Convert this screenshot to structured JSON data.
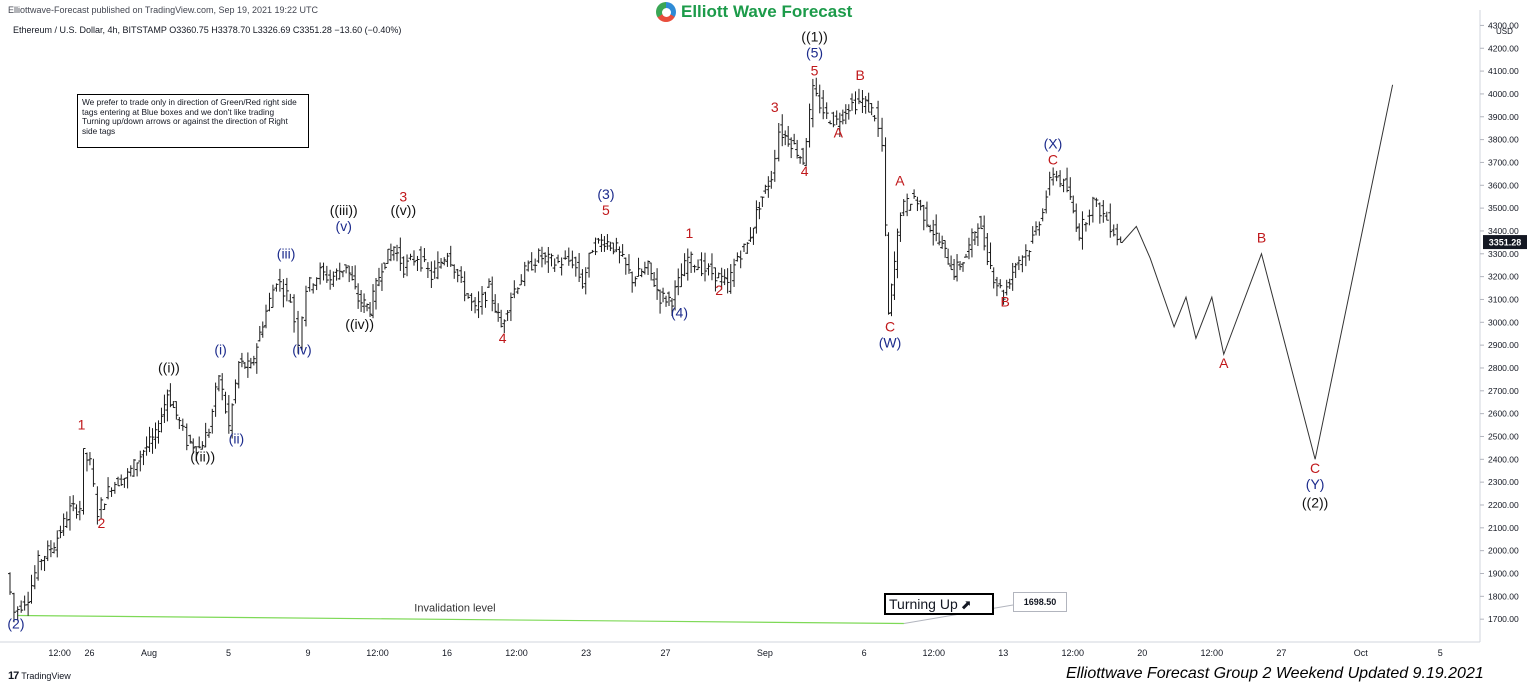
{
  "header": {
    "published": "Elliottwave-Forecast published on TradingView.com, Sep 19, 2021 19:22 UTC",
    "symbol_line": "Ethereum / U.S. Dollar, 4h, BITSTAMP  O3360.75  H3378.70  L3326.69  C3351.28  −13.60 (−0.40%)"
  },
  "brand": {
    "name": "Elliott Wave Forecast",
    "colors": [
      "#2e8bd6",
      "#e84d3c",
      "#3aa655"
    ]
  },
  "note_text": "We prefer to trade only in direction of Green/Red right side tags entering at Blue boxes and we don't like trading Turning up/down arrows or against the direction of Right side tags",
  "turning_label": "Turning Up",
  "turning_icon": "trend-up-arrow-icon",
  "invalidation": {
    "label": "Invalidation level",
    "value": "1698.50"
  },
  "footer": {
    "tradingview": "TradingView",
    "updated": "Elliottwave Forecast Group 2 Weekend Updated 9.19.2021"
  },
  "chart_data": {
    "type": "line",
    "title": "",
    "xlabel": "",
    "ylabel": "USD",
    "ylim": [
      1600,
      4350
    ],
    "grid": false,
    "y_ticks": [
      1700,
      1800,
      1900,
      2000,
      2100,
      2200,
      2300,
      2400,
      2500,
      2600,
      2700,
      2800,
      2900,
      3000,
      3100,
      3200,
      3300,
      3400,
      3500,
      3600,
      3700,
      3800,
      3900,
      4000,
      4100,
      4200,
      4300
    ],
    "y_tick_labels": [
      "1700.00",
      "1800.00",
      "1900.00",
      "2000.00",
      "2100.00",
      "2200.00",
      "2300.00",
      "2400.00",
      "2500.00",
      "2600.00",
      "2700.00",
      "2800.00",
      "2900.00",
      "3000.00",
      "3100.00",
      "3200.00",
      "3300.00",
      "3400.00",
      "3500.00",
      "3600.00",
      "3700.00",
      "3800.00",
      "3900.00",
      "4000.00",
      "4100.00",
      "4200.00",
      "4300.00"
    ],
    "y_top_label": "USD",
    "current_price": "3351.28",
    "x_tick_labels": [
      {
        "label": "12:00",
        "x": -4.5
      },
      {
        "label": "26",
        "x": -3
      },
      {
        "label": "Aug",
        "x": 0
      },
      {
        "label": "5",
        "x": 4
      },
      {
        "label": "9",
        "x": 8
      },
      {
        "label": "12:00",
        "x": 11.5
      },
      {
        "label": "16",
        "x": 15
      },
      {
        "label": "12:00",
        "x": 18.5
      },
      {
        "label": "23",
        "x": 22
      },
      {
        "label": "27",
        "x": 26
      },
      {
        "label": "Sep",
        "x": 31
      },
      {
        "label": "6",
        "x": 36
      },
      {
        "label": "12:00",
        "x": 39.5
      },
      {
        "label": "13",
        "x": 43
      },
      {
        "label": "12:00",
        "x": 46.5
      },
      {
        "label": "20",
        "x": 50
      },
      {
        "label": "12:00",
        "x": 53.5
      },
      {
        "label": "27",
        "x": 57
      },
      {
        "label": "Oct",
        "x": 61
      },
      {
        "label": "5",
        "x": 65
      }
    ],
    "x_unit": "days since Aug 1, 2021",
    "price_path": [
      [
        -7.1,
        1900
      ],
      [
        -6.7,
        1730
      ],
      [
        -6.0,
        1800
      ],
      [
        -5.5,
        1950
      ],
      [
        -4.7,
        2030
      ],
      [
        -3.9,
        2180
      ],
      [
        -3.4,
        2190
      ],
      [
        -3.2,
        2420
      ],
      [
        -2.9,
        2380
      ],
      [
        -2.5,
        2170
      ],
      [
        -1.8,
        2290
      ],
      [
        -1.0,
        2330
      ],
      [
        -0.2,
        2440
      ],
      [
        0.4,
        2500
      ],
      [
        1.0,
        2690
      ],
      [
        1.6,
        2560
      ],
      [
        2.0,
        2480
      ],
      [
        2.6,
        2450
      ],
      [
        3.1,
        2530
      ],
      [
        3.6,
        2770
      ],
      [
        4.1,
        2540
      ],
      [
        4.6,
        2820
      ],
      [
        5.2,
        2800
      ],
      [
        5.8,
        3000
      ],
      [
        6.5,
        3190
      ],
      [
        7.2,
        3100
      ],
      [
        7.6,
        2920
      ],
      [
        8.0,
        3150
      ],
      [
        8.7,
        3220
      ],
      [
        9.2,
        3190
      ],
      [
        10.0,
        3250
      ],
      [
        10.6,
        3100
      ],
      [
        11.2,
        3060
      ],
      [
        11.8,
        3250
      ],
      [
        12.4,
        3330
      ],
      [
        12.9,
        3240
      ],
      [
        13.6,
        3290
      ],
      [
        14.3,
        3200
      ],
      [
        15.1,
        3310
      ],
      [
        15.8,
        3170
      ],
      [
        16.5,
        3050
      ],
      [
        17.2,
        3150
      ],
      [
        17.8,
        2980
      ],
      [
        18.3,
        3120
      ],
      [
        19.0,
        3220
      ],
      [
        19.7,
        3290
      ],
      [
        20.5,
        3260
      ],
      [
        21.4,
        3270
      ],
      [
        21.9,
        3170
      ],
      [
        22.4,
        3330
      ],
      [
        23.0,
        3360
      ],
      [
        23.6,
        3320
      ],
      [
        24.4,
        3190
      ],
      [
        25.2,
        3240
      ],
      [
        25.8,
        3110
      ],
      [
        26.4,
        3100
      ],
      [
        27.2,
        3280
      ],
      [
        27.9,
        3240
      ],
      [
        28.6,
        3210
      ],
      [
        29.2,
        3160
      ],
      [
        29.7,
        3290
      ],
      [
        30.2,
        3340
      ],
      [
        30.8,
        3520
      ],
      [
        31.4,
        3640
      ],
      [
        31.8,
        3840
      ],
      [
        32.4,
        3790
      ],
      [
        33.0,
        3710
      ],
      [
        33.5,
        4010
      ],
      [
        34.2,
        3900
      ],
      [
        34.7,
        3880
      ],
      [
        35.3,
        3950
      ],
      [
        36.0,
        3970
      ],
      [
        36.6,
        3910
      ],
      [
        37.0,
        3770
      ],
      [
        37.3,
        3030
      ],
      [
        37.9,
        3490
      ],
      [
        38.6,
        3550
      ],
      [
        39.4,
        3420
      ],
      [
        40.0,
        3330
      ],
      [
        40.6,
        3220
      ],
      [
        41.2,
        3290
      ],
      [
        41.8,
        3440
      ],
      [
        42.6,
        3200
      ],
      [
        43.1,
        3120
      ],
      [
        43.7,
        3260
      ],
      [
        44.4,
        3330
      ],
      [
        44.9,
        3450
      ],
      [
        45.6,
        3660
      ],
      [
        46.3,
        3580
      ],
      [
        46.9,
        3390
      ],
      [
        47.6,
        3530
      ],
      [
        48.3,
        3450
      ],
      [
        49.0,
        3351
      ]
    ],
    "projection_path": [
      [
        49.0,
        3351
      ],
      [
        49.7,
        3420
      ],
      [
        50.4,
        3280
      ],
      [
        51.6,
        2980
      ],
      [
        52.2,
        3110
      ],
      [
        52.7,
        2930
      ],
      [
        53.5,
        3110
      ],
      [
        54.1,
        2860
      ],
      [
        56.0,
        3300
      ],
      [
        58.7,
        2400
      ],
      [
        62.6,
        4040
      ]
    ],
    "invalidation_value": 1698.5,
    "wave_labels": [
      {
        "text": "(2)",
        "x": -6.7,
        "y": 1660,
        "color": "navy"
      },
      {
        "text": "1",
        "x": -3.4,
        "y": 2530,
        "color": "red"
      },
      {
        "text": "2",
        "x": -2.4,
        "y": 2100,
        "color": "red"
      },
      {
        "text": "((i))",
        "x": 1.0,
        "y": 2780,
        "color": "black"
      },
      {
        "text": "((ii))",
        "x": 2.7,
        "y": 2390,
        "color": "black"
      },
      {
        "text": "(i)",
        "x": 3.6,
        "y": 2860,
        "color": "navy"
      },
      {
        "text": "(ii)",
        "x": 4.4,
        "y": 2470,
        "color": "navy"
      },
      {
        "text": "(iii)",
        "x": 6.9,
        "y": 3280,
        "color": "navy"
      },
      {
        "text": "(iv)",
        "x": 7.7,
        "y": 2860,
        "color": "navy"
      },
      {
        "text": "((iii))",
        "x": 9.8,
        "y": 3470,
        "color": "black"
      },
      {
        "text": "(v)",
        "x": 9.8,
        "y": 3400,
        "color": "navy"
      },
      {
        "text": "((iv))",
        "x": 10.6,
        "y": 2970,
        "color": "black"
      },
      {
        "text": "3",
        "x": 12.8,
        "y": 3530,
        "color": "red"
      },
      {
        "text": "((v))",
        "x": 12.8,
        "y": 3470,
        "color": "black"
      },
      {
        "text": "4",
        "x": 17.8,
        "y": 2910,
        "color": "red"
      },
      {
        "text": "(3)",
        "x": 23.0,
        "y": 3540,
        "color": "navy"
      },
      {
        "text": "5",
        "x": 23.0,
        "y": 3470,
        "color": "red"
      },
      {
        "text": "(4)",
        "x": 26.7,
        "y": 3020,
        "color": "navy"
      },
      {
        "text": "1",
        "x": 27.2,
        "y": 3370,
        "color": "red"
      },
      {
        "text": "2",
        "x": 28.7,
        "y": 3120,
        "color": "red"
      },
      {
        "text": "3",
        "x": 31.5,
        "y": 3920,
        "color": "red"
      },
      {
        "text": "4",
        "x": 33.0,
        "y": 3640,
        "color": "red"
      },
      {
        "text": "((1))",
        "x": 33.5,
        "y": 4230,
        "color": "black"
      },
      {
        "text": "(5)",
        "x": 33.5,
        "y": 4160,
        "color": "navy"
      },
      {
        "text": "5",
        "x": 33.5,
        "y": 4080,
        "color": "red"
      },
      {
        "text": "A",
        "x": 34.7,
        "y": 3810,
        "color": "red"
      },
      {
        "text": "B",
        "x": 35.8,
        "y": 4060,
        "color": "red"
      },
      {
        "text": "A",
        "x": 37.8,
        "y": 3600,
        "color": "red"
      },
      {
        "text": "C",
        "x": 37.3,
        "y": 2960,
        "color": "red"
      },
      {
        "text": "(W)",
        "x": 37.3,
        "y": 2890,
        "color": "navy"
      },
      {
        "text": "B",
        "x": 43.1,
        "y": 3070,
        "color": "red"
      },
      {
        "text": "(X)",
        "x": 45.5,
        "y": 3760,
        "color": "navy"
      },
      {
        "text": "C",
        "x": 45.5,
        "y": 3690,
        "color": "red"
      },
      {
        "text": "B",
        "x": 56.0,
        "y": 3350,
        "color": "red"
      },
      {
        "text": "A",
        "x": 54.1,
        "y": 2800,
        "color": "red"
      },
      {
        "text": "C",
        "x": 58.7,
        "y": 2340,
        "color": "red"
      },
      {
        "text": "(Y)",
        "x": 58.7,
        "y": 2270,
        "color": "navy"
      },
      {
        "text": "((2))",
        "x": 58.7,
        "y": 2190,
        "color": "black"
      }
    ]
  }
}
